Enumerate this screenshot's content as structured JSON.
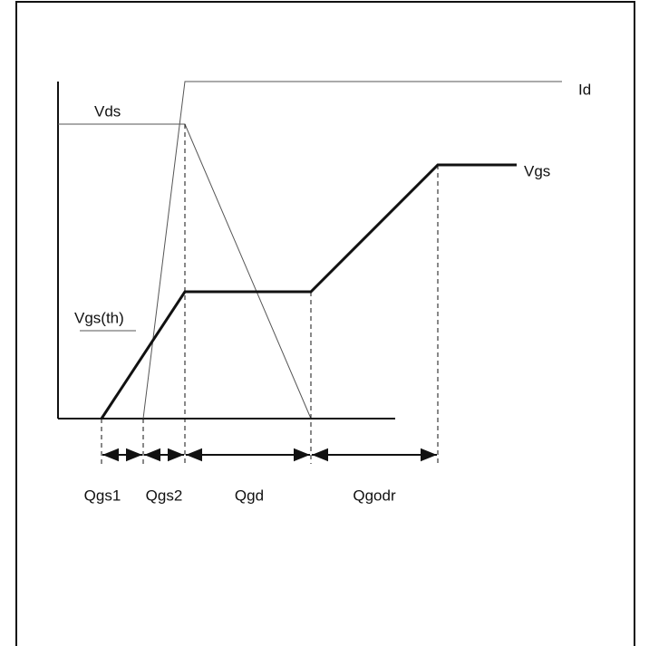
{
  "curves": [
    {
      "label": "Id"
    },
    {
      "label": "Vds"
    },
    {
      "label": "Vgs"
    },
    {
      "label": "Vgs(th)"
    }
  ],
  "intervals": [
    {
      "label": "Qgs1"
    },
    {
      "label": "Qgs2"
    },
    {
      "label": "Qgd"
    },
    {
      "label": "Qgodr"
    }
  ]
}
